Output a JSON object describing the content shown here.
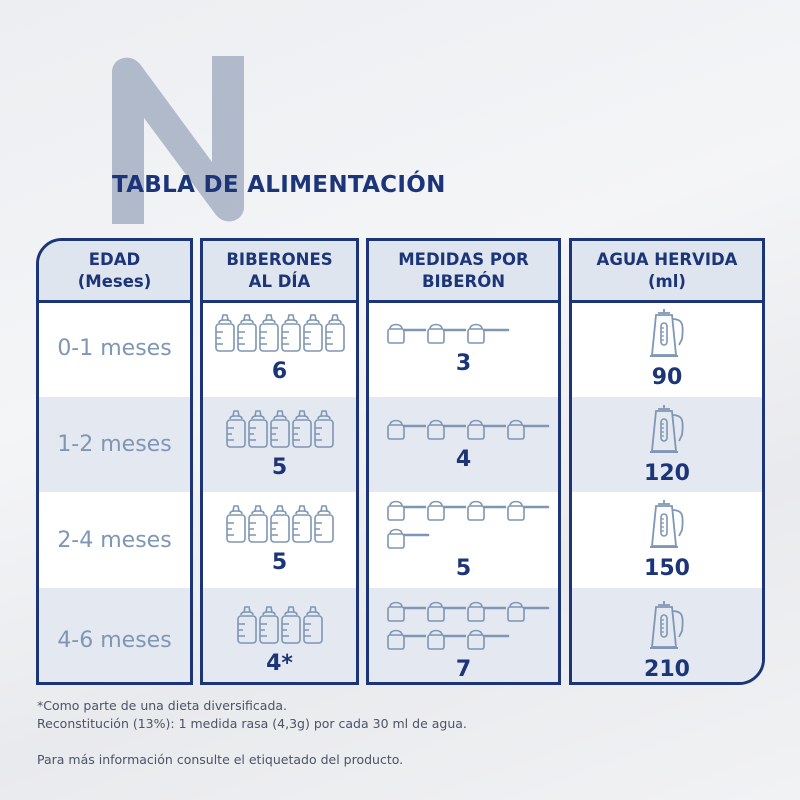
{
  "logo_letter": "N",
  "title": "TABLA DE ALIMENTACIÓN",
  "headers": [
    "EDAD\n(Meses)",
    "BIBERONES\nAL DÍA",
    "MEDIDAS POR\nBIBERÓN",
    "AGUA HERVIDA\n(ml)"
  ],
  "rows": [
    {
      "age": "0-1 meses",
      "bottles": 6,
      "bottles_label": "6",
      "scoops": 3,
      "scoops_label": "3",
      "water": "90"
    },
    {
      "age": "1-2 meses",
      "bottles": 5,
      "bottles_label": "5",
      "scoops": 4,
      "scoops_label": "4",
      "water": "120"
    },
    {
      "age": "2-4 meses",
      "bottles": 5,
      "bottles_label": "5",
      "scoops": 5,
      "scoops_label": "5",
      "water": "150"
    },
    {
      "age": "4-6 meses",
      "bottles": 4,
      "bottles_label": "4*",
      "scoops": 7,
      "scoops_label": "7",
      "water": "210"
    }
  ],
  "icons": {
    "bottle": "baby-bottle-icon",
    "scoop": "measuring-scoop-icon",
    "kettle": "kettle-icon"
  },
  "colors": {
    "navy": "#1c3578",
    "icon": "#7f96b4",
    "alt_row": "#e4e9f1"
  },
  "footnotes": [
    "*Como parte de una dieta diversificada.",
    "Reconstitución (13%): 1 medida rasa (4,3g) por cada 30 ml de agua.",
    "Para más información consulte el etiquetado del producto."
  ]
}
